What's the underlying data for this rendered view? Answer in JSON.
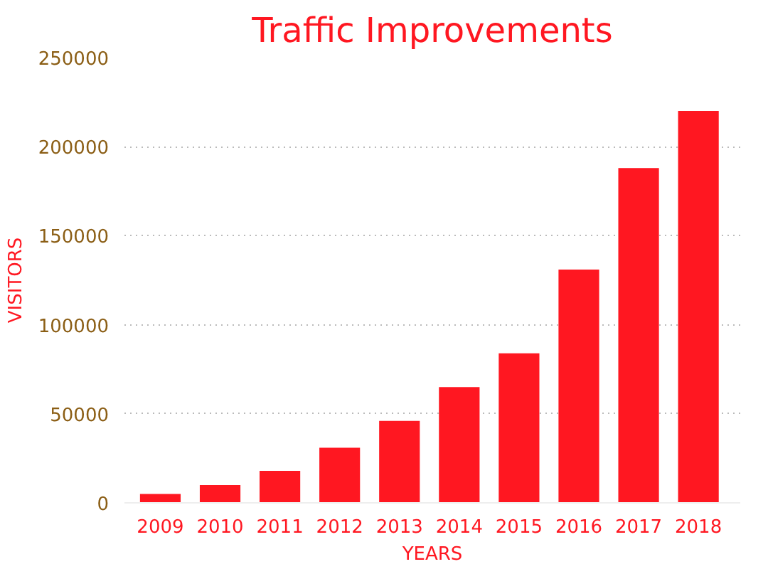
{
  "chart_data": {
    "type": "bar",
    "title": "Traffic Improvements",
    "xlabel": "YEARS",
    "ylabel": "VISITORS",
    "categories": [
      "2009",
      "2010",
      "2011",
      "2012",
      "2013",
      "2014",
      "2015",
      "2016",
      "2017",
      "2018"
    ],
    "values": [
      5000,
      10000,
      18000,
      31000,
      46000,
      65000,
      84000,
      131000,
      188000,
      220000
    ],
    "color": "#ff1721",
    "ylim": [
      0,
      250000
    ],
    "yticks": [
      0,
      50000,
      100000,
      150000,
      200000,
      250000
    ],
    "grid": "y"
  }
}
